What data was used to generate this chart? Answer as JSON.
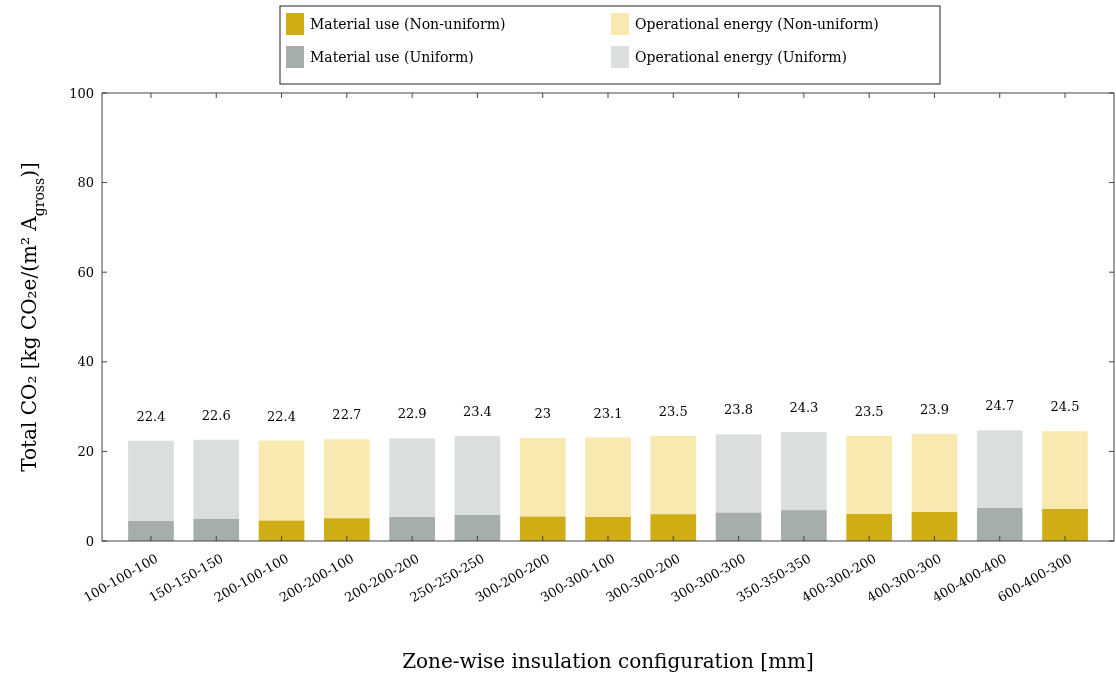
{
  "chart_data": {
    "type": "bar",
    "stacked": true,
    "xlabel": "Zone-wise insulation configuration [mm]",
    "ylabel": "Total CO₂ [kg CO₂e/(m² A$_{gross}$)]",
    "categories": [
      "100-100-100",
      "150-150-150",
      "200-100-100",
      "200-200-100",
      "200-200-200",
      "250-250-250",
      "300-200-200",
      "300-300-100",
      "300-300-200",
      "300-300-300",
      "350-350-350",
      "400-300-200",
      "400-300-300",
      "400-400-400",
      "600-400-300"
    ],
    "series": [
      {
        "name": "Material use (Non-uniform)",
        "color": "#cfad14",
        "values": [
          null,
          null,
          4.6,
          5.1,
          null,
          null,
          5.5,
          5.4,
          6.0,
          null,
          null,
          6.1,
          6.5,
          null,
          7.2
        ]
      },
      {
        "name": "Operational energy (Non-uniform)",
        "color": "#f7e9b0",
        "values": [
          null,
          null,
          17.8,
          17.6,
          null,
          null,
          17.5,
          17.7,
          17.5,
          null,
          null,
          17.4,
          17.4,
          null,
          17.3
        ]
      },
      {
        "name": "Material use (Uniform)",
        "color": "#a6aeac",
        "values": [
          4.5,
          5.0,
          null,
          null,
          5.4,
          5.9,
          null,
          null,
          null,
          6.4,
          6.9,
          null,
          null,
          7.4,
          null
        ]
      },
      {
        "name": "Operational energy (Uniform)",
        "color": "#dadedf",
        "values": [
          17.9,
          17.6,
          null,
          null,
          17.5,
          17.5,
          null,
          null,
          null,
          17.4,
          17.4,
          null,
          null,
          17.3,
          null
        ]
      }
    ],
    "totals": [
      "22.4",
      "22.6",
      "22.4",
      "22.7",
      "22.9",
      "23.4",
      "23",
      "23.1",
      "23.5",
      "23.8",
      "24.3",
      "23.5",
      "23.9",
      "24.7",
      "24.5"
    ],
    "ylim": [
      0,
      100
    ],
    "yticks": [
      0,
      20,
      40,
      60,
      80,
      100
    ],
    "legend": "top",
    "grid": false
  }
}
